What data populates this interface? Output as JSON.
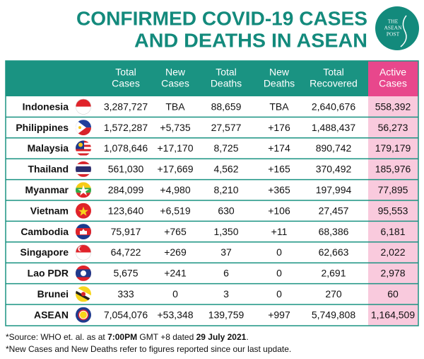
{
  "header": {
    "title_lines": [
      "CONFIRMED COVID-19 CASES",
      "AND DEATHS IN ASEAN"
    ],
    "logo_lines": [
      "THE",
      "ASEAN",
      "POST"
    ]
  },
  "table": {
    "columns": [
      [
        "Total",
        "Cases"
      ],
      [
        "New",
        "Cases"
      ],
      [
        "Total",
        "Deaths"
      ],
      [
        "New",
        "Deaths"
      ],
      [
        "Total",
        "Recovered"
      ],
      [
        "Active",
        "Cases"
      ]
    ],
    "rows": [
      [
        "Indonesia",
        "3,287,727",
        "TBA",
        "88,659",
        "TBA",
        "2,640,676",
        "558,392"
      ],
      [
        "Philippines",
        "1,572,287",
        "+5,735",
        "27,577",
        "+176",
        "1,488,437",
        "56,273"
      ],
      [
        "Malaysia",
        "1,078,646",
        "+17,170",
        "8,725",
        "+174",
        "890,742",
        "179,179"
      ],
      [
        "Thailand",
        "561,030",
        "+17,669",
        "4,562",
        "+165",
        "370,492",
        "185,976"
      ],
      [
        "Myanmar",
        "284,099",
        "+4,980",
        "8,210",
        "+365",
        "197,994",
        "77,895"
      ],
      [
        "Vietnam",
        "123,640",
        "+6,519",
        "630",
        "+106",
        "27,457",
        "95,553"
      ],
      [
        "Cambodia",
        "75,917",
        "+765",
        "1,350",
        "+11",
        "68,386",
        "6,181"
      ],
      [
        "Singapore",
        "64,722",
        "+269",
        "37",
        "0",
        "62,663",
        "2,022"
      ],
      [
        "Lao PDR",
        "5,675",
        "+241",
        "6",
        "0",
        "2,691",
        "2,978"
      ],
      [
        "Brunei",
        "333",
        "0",
        "3",
        "0",
        "270",
        "60"
      ],
      [
        "ASEAN",
        "7,054,076",
        "+53,348",
        "139,759",
        "+997",
        "5,749,808",
        "1,164,509"
      ]
    ]
  },
  "footnotes": [
    {
      "parts": [
        {
          "text": "*Source: WHO et. al. as at ",
          "bold": false
        },
        {
          "text": "7:00PM",
          "bold": true
        },
        {
          "text": " GMT +8 dated ",
          "bold": false
        },
        {
          "text": "29 July 2021",
          "bold": true
        },
        {
          "text": ".",
          "bold": false
        }
      ]
    },
    {
      "parts": [
        {
          "text": "*New Cases and New Deaths refer to figures reported since our last update.",
          "bold": false
        }
      ]
    }
  ]
}
